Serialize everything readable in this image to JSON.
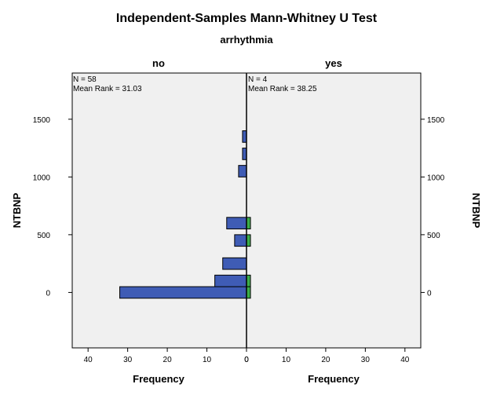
{
  "chart_data": {
    "type": "bar",
    "title": "Independent-Samples Mann-Whitney U Test",
    "subtitle": "arrhythmia",
    "ylabel": "NTBNP",
    "xlabel": "Frequency",
    "ylim": [
      -480,
      1900
    ],
    "xlim": [
      0,
      44
    ],
    "bin_width": 100,
    "y_ticks": [
      0,
      500,
      1000,
      1500
    ],
    "x_ticks": [
      40,
      30,
      20,
      10,
      0
    ],
    "x_ticks_right": [
      0,
      10,
      20,
      30,
      40
    ],
    "grid": false,
    "background": "#f0f0f0",
    "series": [
      {
        "name": "no",
        "color": "#3f5cb5",
        "n_label": "N = 58",
        "rank_label": "Mean Rank = 31.03",
        "bins": [
          {
            "start": -50,
            "count": 32
          },
          {
            "start": 50,
            "count": 8
          },
          {
            "start": 200,
            "count": 6
          },
          {
            "start": 400,
            "count": 3
          },
          {
            "start": 550,
            "count": 5
          },
          {
            "start": 1000,
            "count": 2
          },
          {
            "start": 1150,
            "count": 1
          },
          {
            "start": 1300,
            "count": 1
          }
        ]
      },
      {
        "name": "yes",
        "color": "#3cae4a",
        "n_label": "N = 4",
        "rank_label": "Mean Rank = 38.25",
        "bins": [
          {
            "start": -50,
            "count": 1
          },
          {
            "start": 50,
            "count": 1
          },
          {
            "start": 400,
            "count": 1
          },
          {
            "start": 550,
            "count": 1
          }
        ]
      }
    ]
  }
}
